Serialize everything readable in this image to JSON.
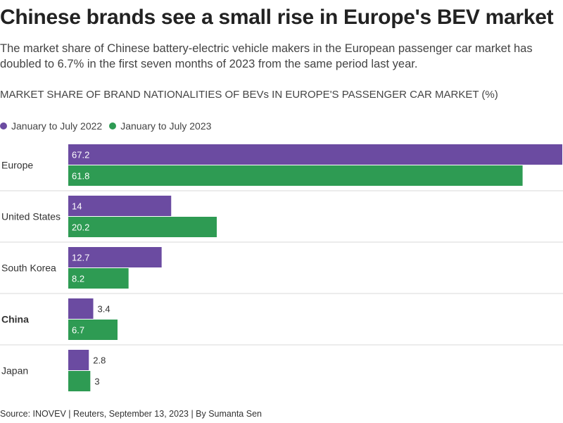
{
  "title": "Chinese brands see a small rise in Europe's BEV market",
  "subtitle": "The market share of Chinese battery-electric vehicle makers in the European passenger car market has doubled to 6.7% in the first seven months of 2023 from the same period last year.",
  "source": "Source: INOVEV | Reuters, September 13, 2023 | By Sumanta Sen",
  "colors": {
    "series_2022": "#6b4ba1",
    "series_2023": "#2e9b53",
    "divider": "#d9d9d9"
  },
  "chart_data": {
    "type": "bar",
    "orientation": "horizontal",
    "title": "MARKET SHARE OF BRAND NATIONALITIES OF BEVs IN EUROPE'S PASSENGER CAR MARKET (%)",
    "categories": [
      "Europe",
      "United States",
      "South Korea",
      "China",
      "Japan"
    ],
    "highlighted_category": "China",
    "series": [
      {
        "name": "January to July 2022",
        "values": [
          67.2,
          14,
          12.7,
          3.4,
          2.8
        ]
      },
      {
        "name": "January to July 2023",
        "values": [
          61.8,
          20.2,
          8.2,
          6.7,
          3
        ]
      }
    ],
    "xlim": [
      0,
      67.2
    ],
    "legend_position": "top-left",
    "grid": false
  }
}
